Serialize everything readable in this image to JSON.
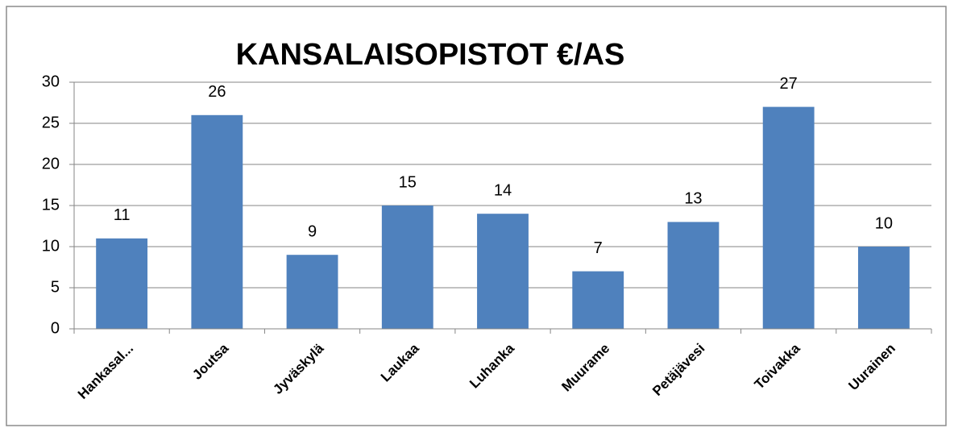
{
  "chart_data": {
    "type": "bar",
    "title": "KANSALAISOPISTOT €/AS",
    "categories": [
      "Hankasal...",
      "Joutsa",
      "Jyväskylä",
      "Laukaa",
      "Luhanka",
      "Muurame",
      "Petäjävesi",
      "Toivakka",
      "Uurainen"
    ],
    "values": [
      11,
      26,
      9,
      15,
      14,
      7,
      13,
      27,
      10
    ],
    "color": "#4f81bd",
    "ylim": [
      0,
      30
    ],
    "yticks": [
      0,
      5,
      10,
      15,
      20,
      25,
      30
    ],
    "grid": true
  }
}
